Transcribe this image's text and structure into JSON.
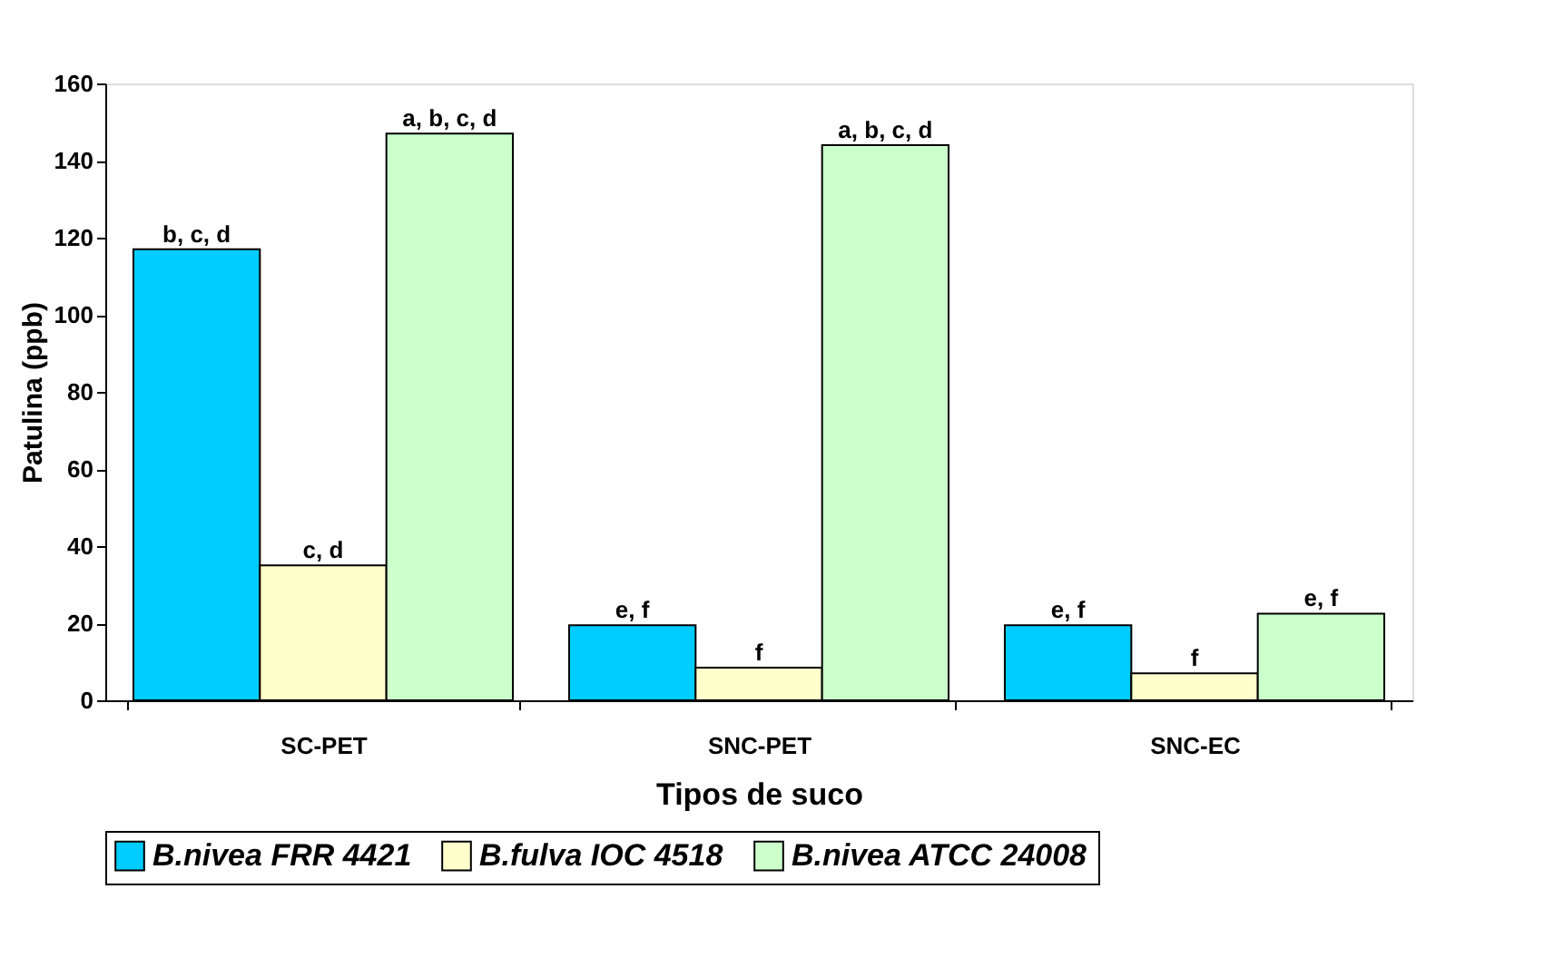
{
  "chart_data": {
    "type": "bar",
    "xlabel": "Tipos de suco",
    "ylabel": "Patulina (ppb)",
    "categories": [
      "SC-PET",
      "SNC-PET",
      "SNC-EC"
    ],
    "series": [
      {
        "name": "B.nivea FRR 4421",
        "color": "#00ccff",
        "values": [
          117,
          19.5,
          19.5
        ],
        "value_labels": [
          "b, c, d",
          "e, f",
          "e, f"
        ]
      },
      {
        "name": "B.fulva IOC 4518",
        "color": "#ffffcc",
        "values": [
          35,
          8.5,
          7
        ],
        "value_labels": [
          "c, d",
          "f",
          "f"
        ]
      },
      {
        "name": "B.nivea ATCC 24008",
        "color": "#ccffcc",
        "values": [
          147,
          144,
          22.5
        ],
        "value_labels": [
          "a, b, c, d",
          "a, b, c, d",
          "e, f"
        ]
      }
    ],
    "ylim": [
      0,
      160
    ],
    "yticks": [
      0,
      20,
      40,
      60,
      80,
      100,
      120,
      140,
      160
    ],
    "grid": false,
    "legend": "bottom"
  }
}
